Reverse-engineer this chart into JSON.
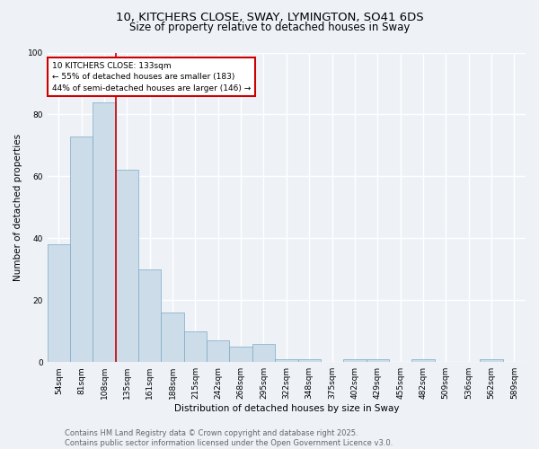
{
  "title_line1": "10, KITCHERS CLOSE, SWAY, LYMINGTON, SO41 6DS",
  "title_line2": "Size of property relative to detached houses in Sway",
  "xlabel": "Distribution of detached houses by size in Sway",
  "ylabel": "Number of detached properties",
  "bar_labels": [
    "54sqm",
    "81sqm",
    "108sqm",
    "135sqm",
    "161sqm",
    "188sqm",
    "215sqm",
    "242sqm",
    "268sqm",
    "295sqm",
    "322sqm",
    "348sqm",
    "375sqm",
    "402sqm",
    "429sqm",
    "455sqm",
    "482sqm",
    "509sqm",
    "536sqm",
    "562sqm",
    "589sqm"
  ],
  "bar_values": [
    38,
    73,
    84,
    62,
    30,
    16,
    10,
    7,
    5,
    6,
    1,
    1,
    0,
    1,
    1,
    0,
    1,
    0,
    0,
    1,
    0
  ],
  "bar_color": "#ccdce8",
  "bar_edge_color": "#7baac8",
  "background_color": "#eef2f7",
  "grid_color": "#ffffff",
  "property_line_x": 2.5,
  "annotation_text": "10 KITCHERS CLOSE: 133sqm\n← 55% of detached houses are smaller (183)\n44% of semi-detached houses are larger (146) →",
  "annotation_box_color": "#ffffff",
  "annotation_box_edge": "#cc0000",
  "vline_color": "#cc0000",
  "ylim": [
    0,
    100
  ],
  "yticks": [
    0,
    20,
    40,
    60,
    80,
    100
  ],
  "footer_line1": "Contains HM Land Registry data © Crown copyright and database right 2025.",
  "footer_line2": "Contains public sector information licensed under the Open Government Licence v3.0.",
  "title_fontsize": 9.5,
  "subtitle_fontsize": 8.5,
  "axis_label_fontsize": 7.5,
  "tick_fontsize": 6.5,
  "annotation_fontsize": 6.5,
  "footer_fontsize": 6.0
}
